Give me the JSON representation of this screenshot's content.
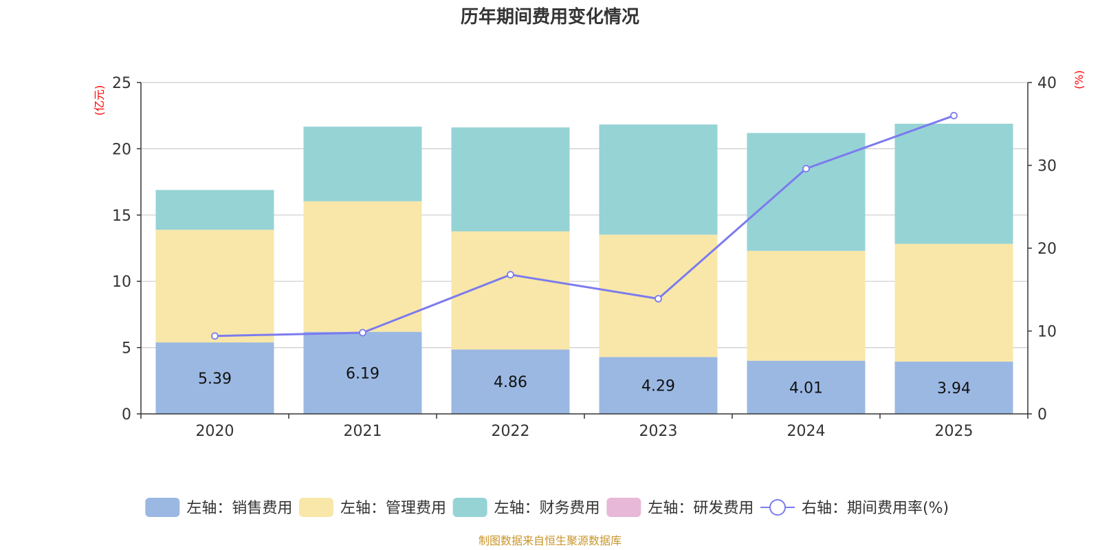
{
  "chart_data": {
    "type": "bar",
    "title": "历年期间费用变化情况",
    "categories": [
      "2020",
      "2021",
      "2022",
      "2023",
      "2024",
      "2025"
    ],
    "y_left": {
      "label": "(亿元)",
      "range": [
        0,
        25
      ],
      "ticks": [
        0,
        5,
        10,
        15,
        20,
        25
      ]
    },
    "y_right": {
      "label": "(%)",
      "range": [
        0,
        40
      ],
      "ticks": [
        0,
        10,
        20,
        30,
        40
      ]
    },
    "series": [
      {
        "name": "左轴：销售费用",
        "axis": "left",
        "kind": "bar",
        "values": [
          5.39,
          6.19,
          4.86,
          4.29,
          4.01,
          3.94
        ],
        "labels": [
          "5.39",
          "6.19",
          "4.86",
          "4.29",
          "4.01",
          "3.94"
        ],
        "color": "#9bb8e3"
      },
      {
        "name": "左轴：管理费用",
        "axis": "left",
        "kind": "bar",
        "values": [
          8.5,
          9.85,
          8.91,
          9.23,
          8.29,
          8.89
        ],
        "color": "#f8e7a8"
      },
      {
        "name": "左轴：财务费用",
        "axis": "left",
        "kind": "bar",
        "values": [
          3.0,
          5.63,
          7.84,
          8.31,
          8.89,
          9.06
        ],
        "color": "#96d3d5"
      },
      {
        "name": "左轴：研发费用",
        "axis": "left",
        "kind": "bar",
        "values": [
          0,
          0,
          0,
          0,
          0,
          0
        ],
        "color": "#e8b8d8"
      },
      {
        "name": "右轴：期间费用率(%)",
        "axis": "right",
        "kind": "line",
        "values": [
          9.4,
          9.8,
          16.8,
          13.9,
          29.6,
          36.0
        ],
        "color": "#7b7bee"
      }
    ],
    "legend_position": "bottom",
    "grid": true,
    "footer": "制图数据来自恒生聚源数据库",
    "colors": {
      "axis_label": "#ff0000",
      "footer": "#c8962a",
      "grid": "#cccccc",
      "axis_line": "#333333",
      "text": "#333333"
    }
  }
}
